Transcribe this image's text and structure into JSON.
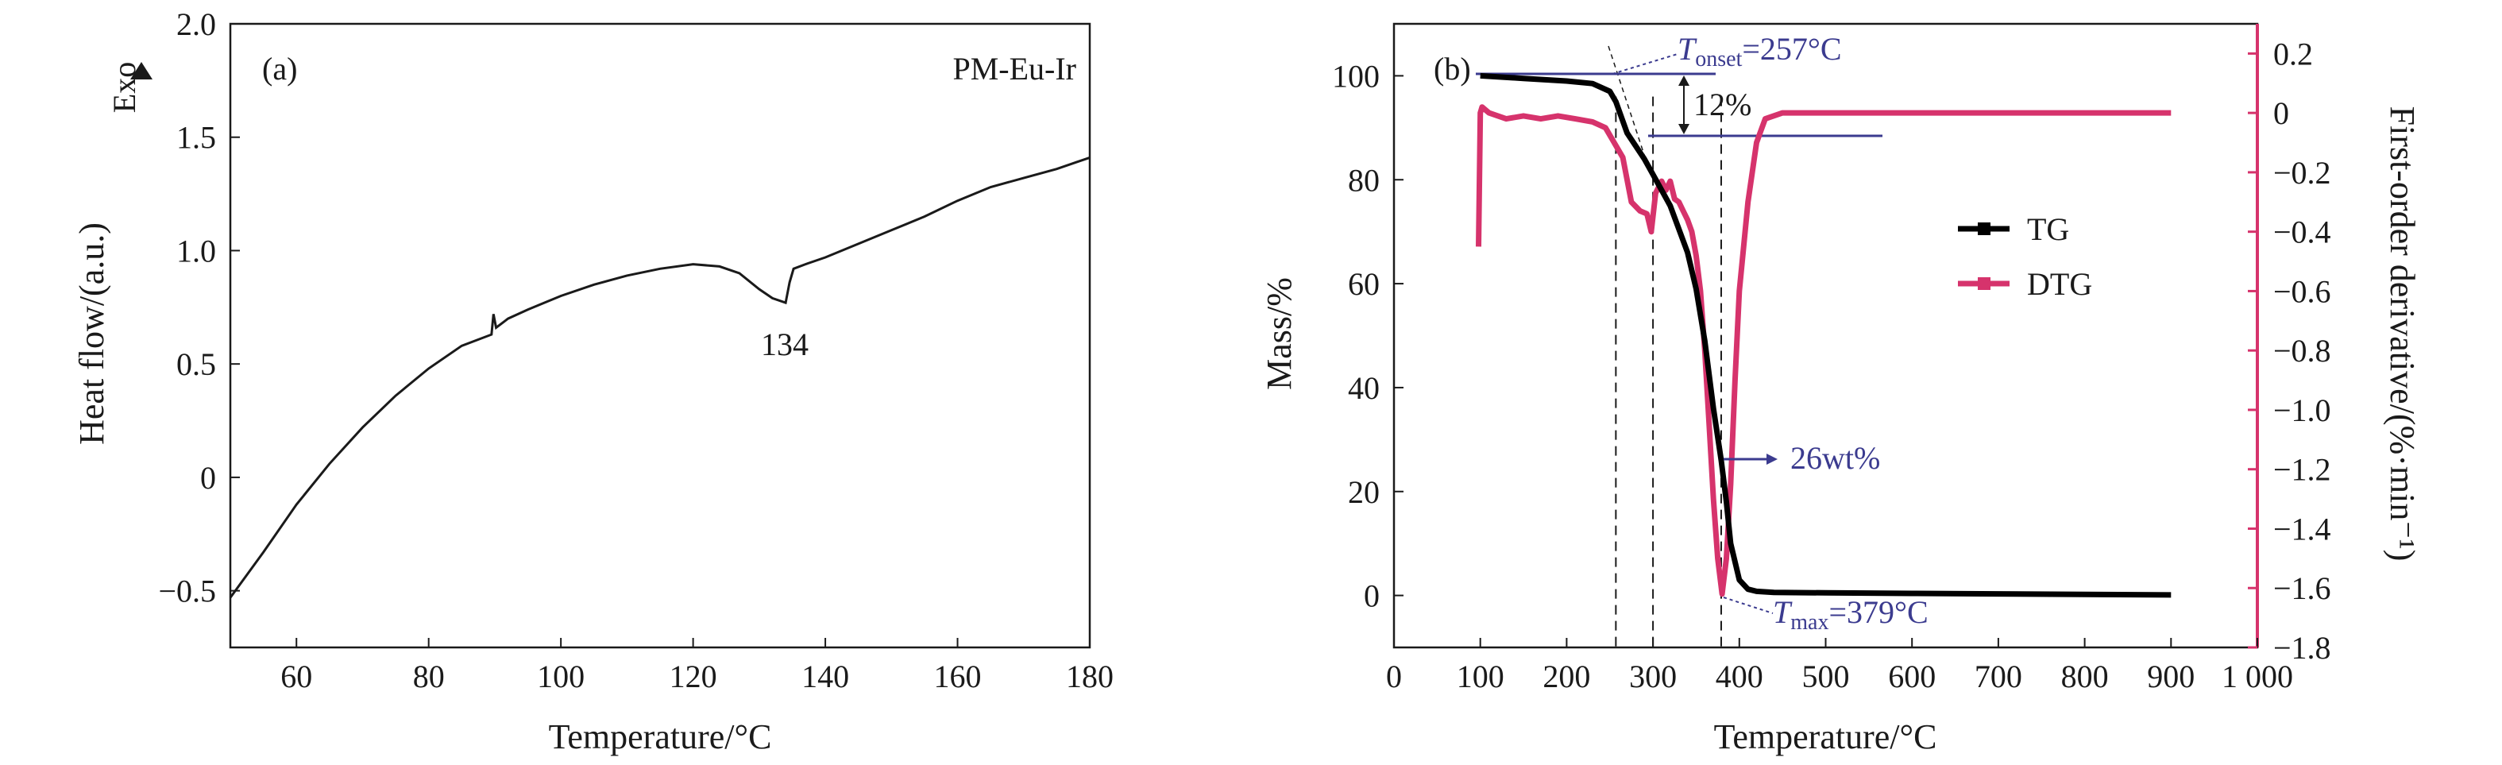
{
  "panels": {
    "a": {
      "label": "(a)",
      "sample_label": "PM-Eu-Ir",
      "exo_label": "Exo",
      "xlabel": "Temperature/°C",
      "ylabel": "Heat flow/(a.u.)",
      "peak_label": "134"
    },
    "b": {
      "label": "(b)",
      "xlabel": "Temperature/°C",
      "ylabel_left": "Mass/%",
      "ylabel_right": "First-order derivative/(%·min⁻¹)",
      "onset_T": "T",
      "onset_sub": "onset",
      "onset_value": "=257°C",
      "max_T": "T",
      "max_sub": "max",
      "max_value": "=379°C",
      "loss_label": "12%",
      "residual_label": "26wt%",
      "legend": [
        "TG",
        "DTG"
      ]
    }
  },
  "chart_data": [
    {
      "type": "line",
      "panel": "(a)",
      "title": "",
      "xlabel": "Temperature/°C",
      "ylabel": "Heat flow/(a.u.)",
      "xlim": [
        50,
        180
      ],
      "ylim": [
        -0.75,
        2.0
      ],
      "xticks": [
        60,
        80,
        100,
        120,
        140,
        160,
        180
      ],
      "yticks": [
        -0.5,
        0,
        0.5,
        1.0,
        1.5,
        2.0
      ],
      "ytick_labels": [
        "−0.5",
        "0",
        "0.5",
        "1.0",
        "1.5",
        "2.0"
      ],
      "series": [
        {
          "color": "#1a1a1a",
          "x": [
            50,
            55,
            60,
            65,
            70,
            75,
            80,
            85,
            89.5,
            89.8,
            90.2,
            92,
            95,
            100,
            105,
            110,
            115,
            120,
            124,
            127,
            130,
            132,
            134,
            134.6,
            135.2,
            137,
            140,
            145,
            150,
            155,
            160,
            165,
            170,
            175,
            178,
            180
          ],
          "y": [
            -0.53,
            -0.33,
            -0.12,
            0.06,
            0.22,
            0.36,
            0.48,
            0.58,
            0.63,
            0.72,
            0.66,
            0.7,
            0.74,
            0.8,
            0.85,
            0.89,
            0.92,
            0.94,
            0.93,
            0.9,
            0.83,
            0.79,
            0.77,
            0.86,
            0.92,
            0.94,
            0.97,
            1.03,
            1.09,
            1.15,
            1.22,
            1.28,
            1.32,
            1.36,
            1.39,
            1.41
          ]
        }
      ]
    },
    {
      "type": "line",
      "panel": "(b)",
      "title": "",
      "xlabel": "Temperature/°C",
      "ylabel": "Mass/%",
      "y2label": "First-order derivative/(%·min⁻¹)",
      "xlim": [
        0,
        1000
      ],
      "ylim": [
        -10,
        110
      ],
      "y2lim": [
        -1.8,
        0.3
      ],
      "xticks": [
        0,
        100,
        200,
        300,
        400,
        500,
        600,
        700,
        800,
        900,
        1000
      ],
      "xtick_labels": [
        "0",
        "100",
        "200",
        "300",
        "400",
        "500",
        "600",
        "700",
        "800",
        "900",
        "1 000"
      ],
      "yticks": [
        0,
        20,
        40,
        60,
        80,
        100
      ],
      "y2ticks": [
        0.2,
        0,
        -0.2,
        -0.4,
        -0.6,
        -0.8,
        -1.0,
        -1.2,
        -1.4,
        -1.6,
        -1.8
      ],
      "y2tick_labels": [
        "0.2",
        "0",
        "−0.2",
        "−0.4",
        "−0.6",
        "−0.8",
        "−1.0",
        "−1.2",
        "−1.4",
        "−1.6",
        "−1.8"
      ],
      "legend_position": "right",
      "series": [
        {
          "name": "TG",
          "axis": "left",
          "color": "#000000",
          "x": [
            100,
            150,
            200,
            230,
            250,
            257,
            270,
            290,
            300,
            320,
            340,
            350,
            360,
            370,
            379,
            385,
            390,
            400,
            410,
            420,
            440,
            500,
            600,
            700,
            800,
            900
          ],
          "y": [
            100,
            99.5,
            99,
            98.5,
            97,
            95,
            89,
            84,
            81,
            75,
            66,
            59,
            49,
            36,
            26,
            18,
            10,
            3,
            1.2,
            0.8,
            0.6,
            0.5,
            0.4,
            0.3,
            0.2,
            0.1
          ]
        },
        {
          "name": "DTG",
          "axis": "right",
          "color": "#d6336c",
          "x": [
            98,
            100,
            102,
            110,
            130,
            150,
            170,
            190,
            210,
            230,
            245,
            255,
            265,
            275,
            285,
            293,
            298,
            303,
            310,
            315,
            320,
            325,
            330,
            335,
            340,
            345,
            350,
            355,
            360,
            365,
            370,
            375,
            380,
            385,
            390,
            395,
            400,
            410,
            420,
            430,
            450,
            500,
            600,
            700,
            800,
            900
          ],
          "y": [
            -0.45,
            0.0,
            0.02,
            0.0,
            -0.02,
            -0.01,
            -0.02,
            -0.01,
            -0.02,
            -0.03,
            -0.05,
            -0.1,
            -0.15,
            -0.3,
            -0.33,
            -0.34,
            -0.4,
            -0.27,
            -0.23,
            -0.26,
            -0.23,
            -0.29,
            -0.3,
            -0.33,
            -0.36,
            -0.4,
            -0.48,
            -0.6,
            -0.8,
            -1.05,
            -1.3,
            -1.5,
            -1.62,
            -1.5,
            -1.25,
            -0.9,
            -0.6,
            -0.3,
            -0.1,
            -0.02,
            0.0,
            0.0,
            0.0,
            0.0,
            0.0,
            0.0
          ]
        }
      ]
    }
  ]
}
